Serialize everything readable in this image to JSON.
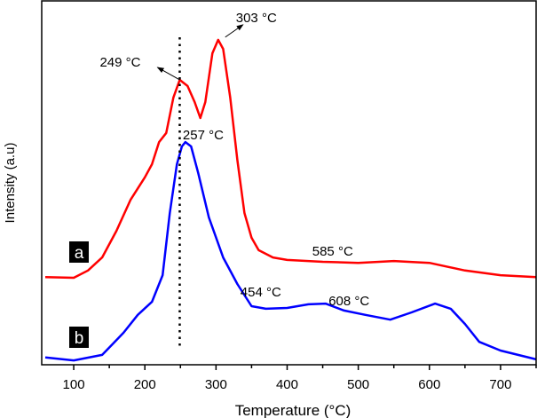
{
  "chart_data": {
    "type": "line",
    "title": "",
    "xlabel": "Temperature (°C)",
    "ylabel": "Intensity (a.u)",
    "xlim": [
      55,
      750
    ],
    "ylim": [
      0,
      100
    ],
    "xticks": [
      100,
      200,
      300,
      400,
      500,
      600,
      700
    ],
    "yticks": [],
    "grid": false,
    "legend": "none",
    "series": [
      {
        "name": "a",
        "color": "#ff0000",
        "x": [
          60,
          100,
          120,
          140,
          160,
          180,
          200,
          210,
          220,
          230,
          240,
          249,
          260,
          270,
          278,
          285,
          295,
          303,
          310,
          320,
          330,
          340,
          350,
          360,
          380,
          400,
          450,
          500,
          550,
          600,
          650,
          700,
          750
        ],
        "y": [
          24.1,
          23.9,
          25.9,
          29.5,
          36.8,
          45.4,
          51.5,
          55.1,
          61.2,
          63.7,
          73.4,
          78.3,
          76.6,
          72.2,
          67.8,
          72.2,
          85.6,
          89.3,
          86.8,
          73.4,
          56.3,
          41.7,
          34.9,
          31.5,
          29.5,
          28.8,
          28.3,
          28.0,
          28.5,
          28.0,
          25.9,
          24.6,
          24.1
        ]
      },
      {
        "name": "b",
        "color": "#0000ff",
        "x": [
          60,
          100,
          140,
          170,
          190,
          210,
          225,
          235,
          245,
          252,
          257,
          265,
          275,
          290,
          310,
          330,
          350,
          370,
          400,
          430,
          454,
          480,
          510,
          545,
          575,
          608,
          630,
          650,
          670,
          700,
          750
        ],
        "y": [
          2.0,
          1.2,
          2.7,
          8.8,
          13.7,
          17.3,
          24.6,
          41.7,
          55.1,
          60.0,
          61.2,
          60.0,
          52.7,
          40.5,
          29.5,
          22.2,
          16.1,
          15.4,
          15.6,
          16.6,
          16.8,
          14.9,
          13.7,
          12.4,
          14.4,
          16.8,
          15.4,
          11.2,
          6.3,
          3.9,
          1.5
        ]
      }
    ],
    "reference_line": {
      "x": 249,
      "style": "dotted"
    },
    "annotations": [
      {
        "text": "249 °C",
        "x": 249,
        "y": 78.3,
        "arrow": true
      },
      {
        "text": "303 °C",
        "x": 303,
        "y": 89.3,
        "arrow": true
      },
      {
        "text": "257 °C",
        "x": 257,
        "y": 61.2,
        "arrow": false
      },
      {
        "text": "585 °C",
        "x": 585,
        "y": 28.3,
        "arrow": false
      },
      {
        "text": "454 °C",
        "x": 454,
        "y": 16.8,
        "arrow": false
      },
      {
        "text": "608 °C",
        "x": 608,
        "y": 16.8,
        "arrow": false
      }
    ]
  }
}
